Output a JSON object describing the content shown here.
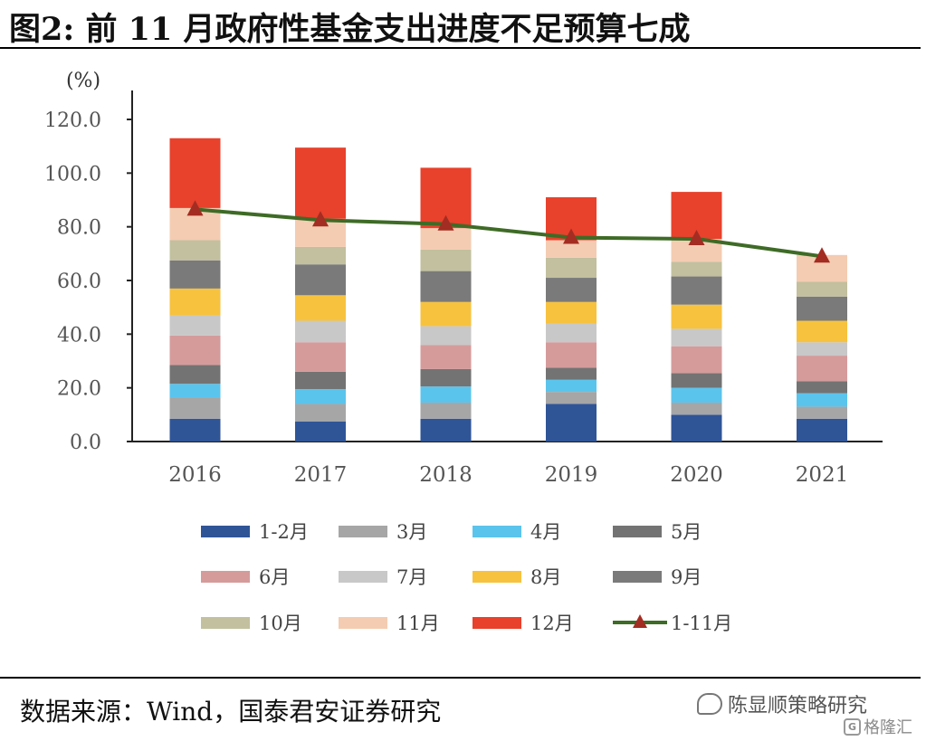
{
  "figure_title": "图2: 前 11 月政府性基金支出进度不足预算七成",
  "source_text": "数据来源：Wind，国泰君安证券研究",
  "watermark": {
    "account": "陈显顺策略研究",
    "platform": "格隆汇",
    "platform_icon": "G",
    "account_icon": "wechat-icon"
  },
  "colors": {
    "1-2月": "#2F5597",
    "3月": "#A6A6A6",
    "4月": "#5BC4EC",
    "5月": "#737373",
    "6月": "#D59B9B",
    "7月": "#C8C8C8",
    "8月": "#F7C23E",
    "9月": "#7A7A7A",
    "10月": "#C2C09E",
    "11月": "#F4CCB2",
    "12月": "#E8412C",
    "1-11月": "#3E6B26",
    "marker": "#A32D22"
  },
  "chart_data": {
    "type": "bar",
    "stacked": true,
    "unit_label": "(%)",
    "categories": [
      "2016",
      "2017",
      "2018",
      "2019",
      "2020",
      "2021"
    ],
    "ylim": [
      0,
      120
    ],
    "yticks": [
      "0.0",
      "20.0",
      "40.0",
      "60.0",
      "80.0",
      "100.0",
      "120.0"
    ],
    "grid": false,
    "legend_position": "bottom",
    "series": [
      {
        "name": "1-2月",
        "values": [
          8.5,
          7.5,
          8.5,
          14,
          10,
          8.5
        ]
      },
      {
        "name": "3月",
        "values": [
          8,
          6.5,
          6,
          4.5,
          4.5,
          4.5
        ]
      },
      {
        "name": "4月",
        "values": [
          5,
          5.5,
          6,
          4.5,
          5.5,
          5
        ]
      },
      {
        "name": "5月",
        "values": [
          7,
          6.5,
          6.5,
          4.5,
          5.5,
          4.5
        ]
      },
      {
        "name": "6月",
        "values": [
          11,
          11,
          9,
          9.5,
          10,
          9.5
        ]
      },
      {
        "name": "7月",
        "values": [
          7.5,
          8,
          7,
          7,
          6.5,
          5
        ]
      },
      {
        "name": "8月",
        "values": [
          10,
          9.5,
          9,
          8,
          9,
          8
        ]
      },
      {
        "name": "9月",
        "values": [
          10.5,
          11.5,
          11.5,
          9,
          10.5,
          9
        ]
      },
      {
        "name": "10月",
        "values": [
          7.5,
          6.5,
          8,
          7.5,
          5.5,
          5.5
        ]
      },
      {
        "name": "11月",
        "values": [
          12,
          10.5,
          8,
          6.5,
          8.5,
          10
        ]
      },
      {
        "name": "12月",
        "values": [
          26,
          26.5,
          22.5,
          16,
          17.5,
          0
        ]
      }
    ],
    "line_series": {
      "name": "1-11月",
      "values": [
        86.5,
        82.5,
        81,
        76,
        75.5,
        69
      ]
    }
  }
}
